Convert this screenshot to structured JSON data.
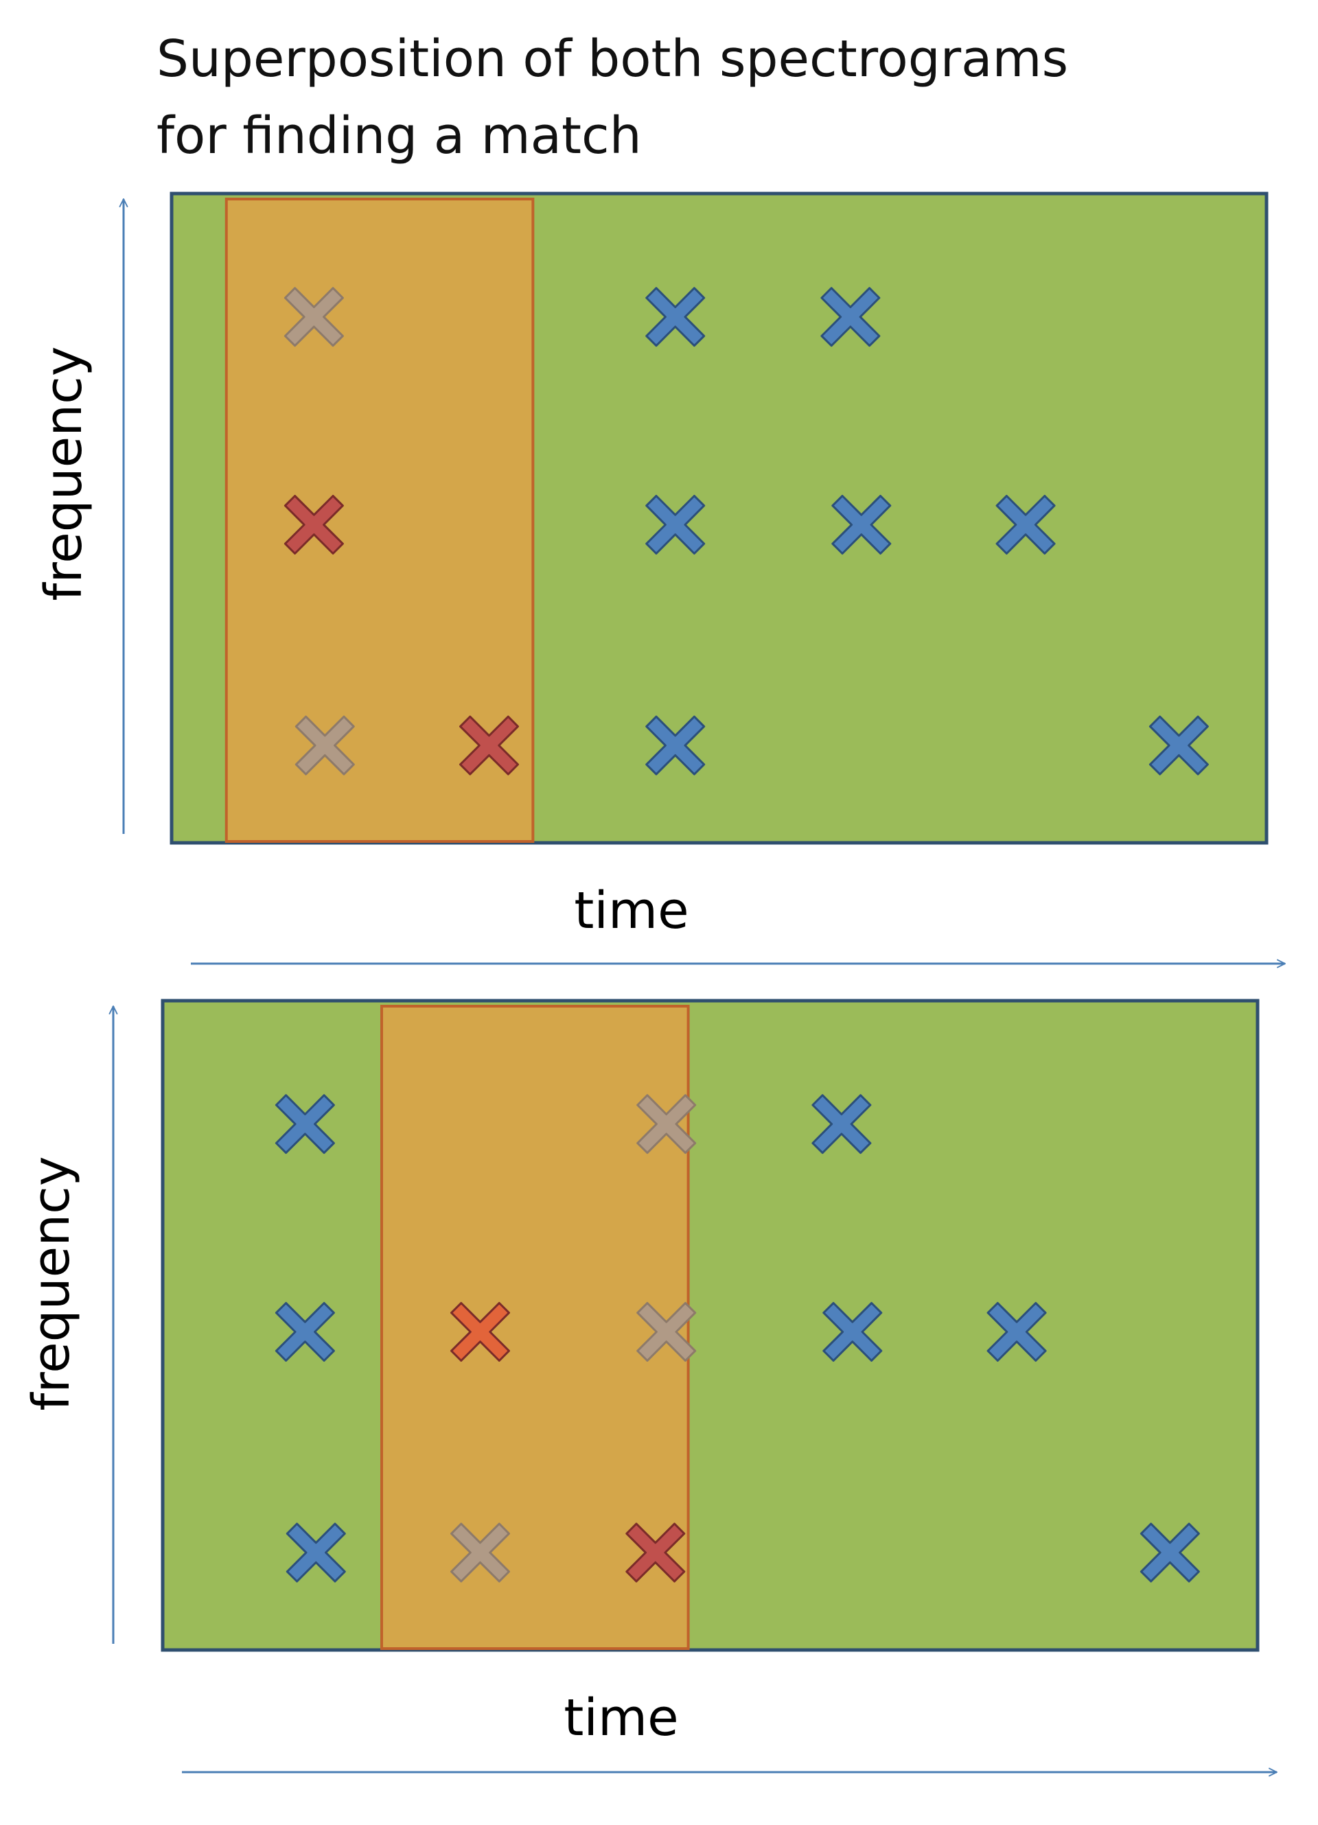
{
  "title": {
    "line1": "Superposition of both spectrograms",
    "line2": "for finding a match"
  },
  "colors": {
    "background_panel": "#9bbb59",
    "panel_border": "#2f4f6f",
    "window_fill": "#d4a64a",
    "window_border": "#c0622b",
    "axis_arrow": "#4a7eb5",
    "cross_blue": "#4f81bd",
    "cross_blue_stroke": "#2b4f7a",
    "cross_red": "#c0504d",
    "cross_red_stroke": "#7a2b29",
    "cross_orange": "#e2643a",
    "cross_gray": "#b09a86",
    "cross_gray_stroke": "#8d7a6a"
  },
  "panels": [
    {
      "name": "top",
      "ylabel": "frequency",
      "xlabel": "time",
      "window_range": [
        0.05,
        0.33
      ],
      "markers": [
        {
          "t": 0.13,
          "f": 0.81,
          "color": "gray"
        },
        {
          "t": 0.46,
          "f": 0.81,
          "color": "blue"
        },
        {
          "t": 0.62,
          "f": 0.81,
          "color": "blue"
        },
        {
          "t": 0.13,
          "f": 0.49,
          "color": "red"
        },
        {
          "t": 0.46,
          "f": 0.49,
          "color": "blue"
        },
        {
          "t": 0.63,
          "f": 0.49,
          "color": "blue"
        },
        {
          "t": 0.78,
          "f": 0.49,
          "color": "blue"
        },
        {
          "t": 0.14,
          "f": 0.15,
          "color": "gray"
        },
        {
          "t": 0.29,
          "f": 0.15,
          "color": "red"
        },
        {
          "t": 0.46,
          "f": 0.15,
          "color": "blue"
        },
        {
          "t": 0.92,
          "f": 0.15,
          "color": "blue"
        }
      ]
    },
    {
      "name": "bottom",
      "ylabel": "frequency",
      "xlabel": "time",
      "window_range": [
        0.2,
        0.48
      ],
      "markers": [
        {
          "t": 0.13,
          "f": 0.81,
          "color": "blue"
        },
        {
          "t": 0.46,
          "f": 0.81,
          "color": "gray"
        },
        {
          "t": 0.62,
          "f": 0.81,
          "color": "blue"
        },
        {
          "t": 0.13,
          "f": 0.49,
          "color": "blue"
        },
        {
          "t": 0.29,
          "f": 0.49,
          "color": "orange"
        },
        {
          "t": 0.46,
          "f": 0.49,
          "color": "gray"
        },
        {
          "t": 0.63,
          "f": 0.49,
          "color": "blue"
        },
        {
          "t": 0.78,
          "f": 0.49,
          "color": "blue"
        },
        {
          "t": 0.14,
          "f": 0.15,
          "color": "blue"
        },
        {
          "t": 0.29,
          "f": 0.15,
          "color": "gray"
        },
        {
          "t": 0.45,
          "f": 0.15,
          "color": "red"
        },
        {
          "t": 0.92,
          "f": 0.15,
          "color": "blue"
        }
      ]
    }
  ]
}
